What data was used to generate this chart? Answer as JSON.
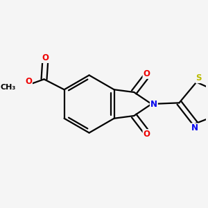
{
  "bg_color": "#f5f5f5",
  "bond_color": "#000000",
  "bond_width": 1.6,
  "atom_colors": {
    "N": "#0000ee",
    "O": "#ee0000",
    "S": "#bbbb00",
    "C": "#000000"
  },
  "font_size_atom": 8.5,
  "font_size_methyl": 8.0
}
